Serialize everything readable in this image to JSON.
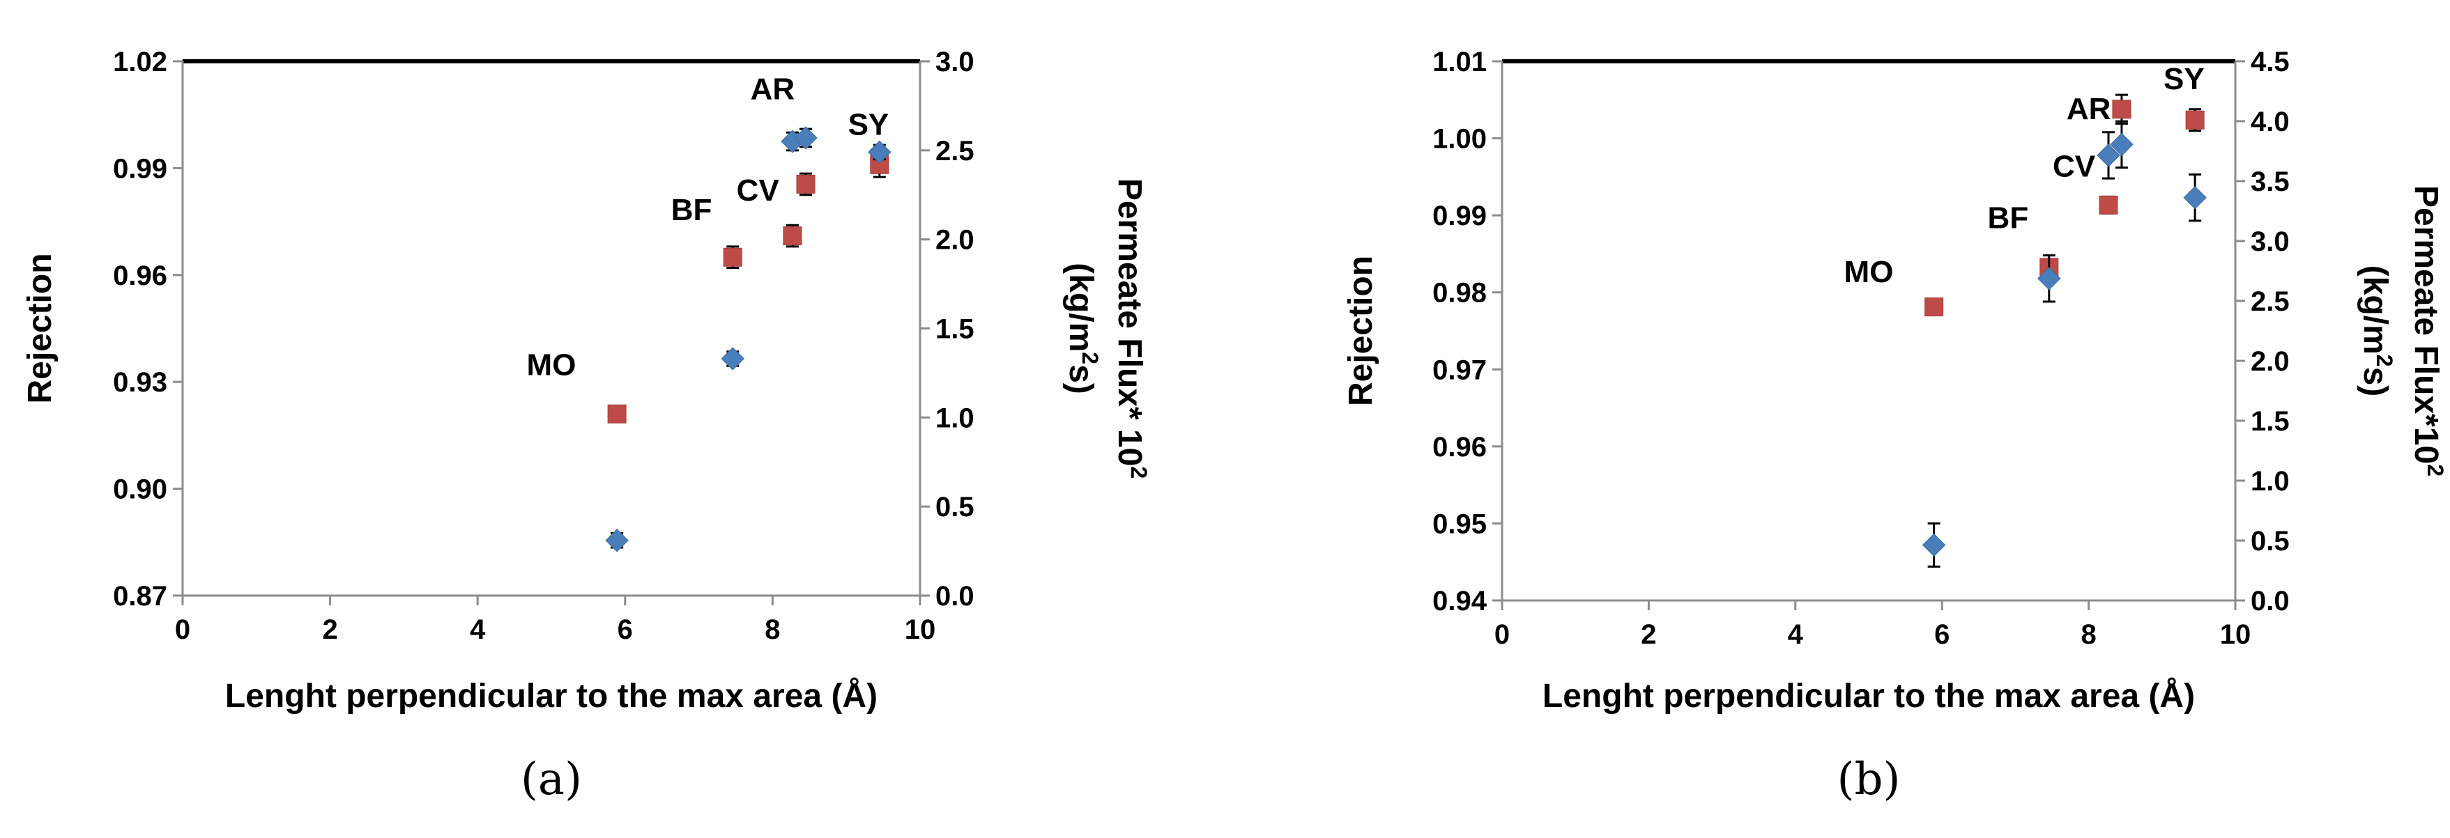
{
  "chart_data": [
    {
      "type": "scatter",
      "panel_label": "(a)",
      "xlabel": "Lenght perpendicular to the max area (Å)",
      "ylabel": "Rejection",
      "y2label_line1": "Permeate Flux* 10",
      "y2label_sup": "2",
      "y2label_line2_pre": "(kg/m",
      "y2label_line2_sup": "2",
      "y2label_line2_post": "s)",
      "xlim": [
        0,
        10
      ],
      "ylim": [
        0.87,
        1.02
      ],
      "y2lim": [
        0,
        3
      ],
      "xticks": [
        "0",
        "2",
        "4",
        "6",
        "8",
        "10"
      ],
      "yticks": [
        "0.87",
        "0.90",
        "0.93",
        "0.96",
        "0.99",
        "1.02"
      ],
      "y2ticks": [
        "0.0",
        "0.5",
        "1.0",
        "1.5",
        "2.0",
        "2.5",
        "3.0"
      ],
      "colors": {
        "rejection": "#4a7ebb",
        "flux": "#be4b48"
      },
      "rejection": [
        {
          "x": 5.89,
          "y": 0.8855,
          "err": 0.002
        },
        {
          "x": 7.46,
          "y": 0.9365,
          "err": 0.002
        },
        {
          "x": 8.27,
          "y": 0.9975,
          "err": 0.0025
        },
        {
          "x": 8.45,
          "y": 0.9985,
          "err": 0.0025
        },
        {
          "x": 9.45,
          "y": 0.9945,
          "err": 0.002
        }
      ],
      "flux": [
        {
          "x": 5.89,
          "y": 1.02,
          "err": 0.0
        },
        {
          "x": 7.46,
          "y": 1.9,
          "err": 0.06
        },
        {
          "x": 8.27,
          "y": 2.02,
          "err": 0.06
        },
        {
          "x": 8.45,
          "y": 2.31,
          "err": 0.06
        },
        {
          "x": 9.45,
          "y": 2.42,
          "err": 0.07
        }
      ],
      "annotations": [
        {
          "text": "MO",
          "x": 5.0,
          "y2": 1.3
        },
        {
          "text": "BF",
          "x": 6.9,
          "y2": 2.17
        },
        {
          "text": "CV",
          "x": 7.8,
          "y2": 2.28
        },
        {
          "text": "AR",
          "x": 8.0,
          "y2": 2.85
        },
        {
          "text": "SY",
          "x": 9.3,
          "y2": 2.65
        }
      ]
    },
    {
      "type": "scatter",
      "panel_label": "(b)",
      "xlabel": "Lenght perpendicular to the max area (Å)",
      "ylabel": "Rejection",
      "y2label_line1": "Permeate Flux*10",
      "y2label_sup": "2",
      "y2label_line2_pre": "(kg/m",
      "y2label_line2_sup": "2",
      "y2label_line2_post": "s)",
      "xlim": [
        0,
        10
      ],
      "ylim": [
        0.94,
        1.01
      ],
      "y2lim": [
        0,
        4.5
      ],
      "xticks": [
        "0",
        "2",
        "4",
        "6",
        "8",
        "10"
      ],
      "yticks": [
        "0.94",
        "0.95",
        "0.96",
        "0.97",
        "0.98",
        "0.99",
        "1.00",
        "1.01"
      ],
      "y2ticks": [
        "0.0",
        "0.5",
        "1.0",
        "1.5",
        "2.0",
        "2.5",
        "3.0",
        "3.5",
        "4.0",
        "4.5"
      ],
      "colors": {
        "rejection": "#4a7ebb",
        "flux": "#be4b48"
      },
      "rejection": [
        {
          "x": 5.89,
          "y": 0.9472,
          "err": 0.0028
        },
        {
          "x": 7.46,
          "y": 0.9818,
          "err": 0.003
        },
        {
          "x": 8.27,
          "y": 0.9978,
          "err": 0.003
        },
        {
          "x": 8.45,
          "y": 0.9992,
          "err": 0.003
        },
        {
          "x": 9.45,
          "y": 0.9923,
          "err": 0.003
        }
      ],
      "flux": [
        {
          "x": 5.89,
          "y": 2.45,
          "err": 0.0
        },
        {
          "x": 7.46,
          "y": 2.78,
          "err": 0.06
        },
        {
          "x": 8.27,
          "y": 3.3,
          "err": 0.07
        },
        {
          "x": 8.45,
          "y": 4.1,
          "err": 0.12
        },
        {
          "x": 9.45,
          "y": 4.01,
          "err": 0.09
        }
      ],
      "annotations": [
        {
          "text": "MO",
          "x": 5.0,
          "y2": 2.75
        },
        {
          "text": "BF",
          "x": 6.9,
          "y2": 3.2
        },
        {
          "text": "CV",
          "x": 7.8,
          "y2": 3.63
        },
        {
          "text": "AR",
          "x": 8.0,
          "y2": 4.11
        },
        {
          "text": "SY",
          "x": 9.3,
          "y2": 4.36
        }
      ]
    }
  ]
}
